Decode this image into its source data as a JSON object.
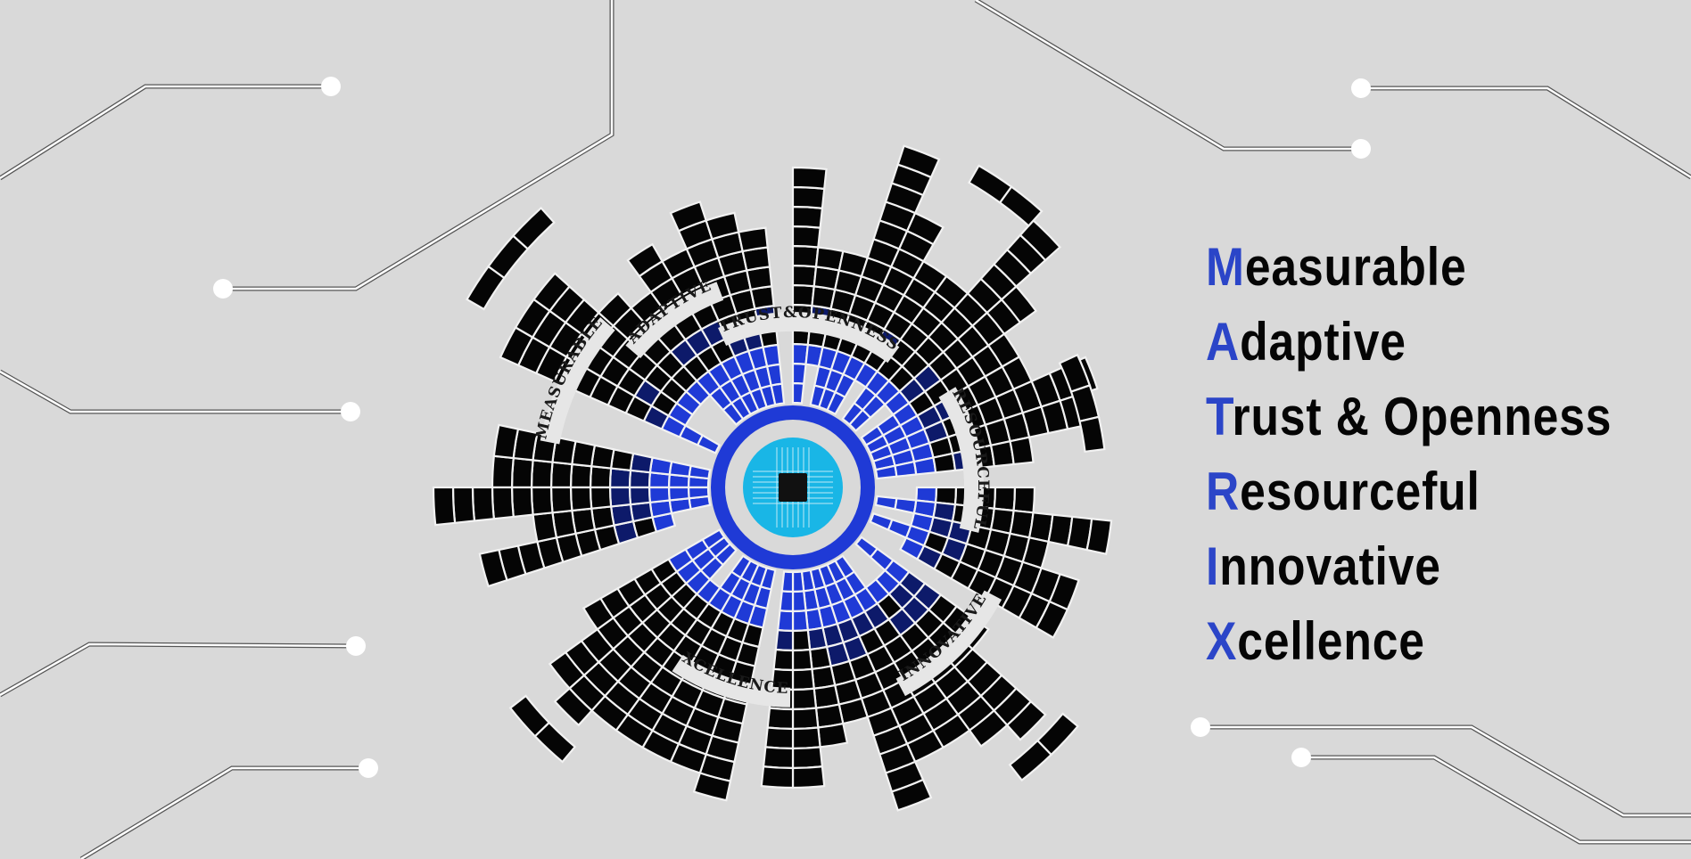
{
  "acronym": "MATRIX",
  "colors": {
    "background": "#d9d9d9",
    "accent": "#2b45c8",
    "text": "#050505",
    "center": "#19b6e6",
    "cells": "#050505",
    "cell_blue": "#1f3ad6"
  },
  "list": [
    {
      "first": "M",
      "rest": "easurable"
    },
    {
      "first": "A",
      "rest": "daptive"
    },
    {
      "first": "T",
      "rest": "rust & Openness"
    },
    {
      "first": "R",
      "rest": "esourceful"
    },
    {
      "first": "I",
      "rest": "nnovative"
    },
    {
      "first": "X",
      "rest": "cellence"
    }
  ],
  "wheel": {
    "labels": [
      "MEASURABLE",
      "ADAPTIVE",
      "TRUST&OPENNESS",
      "RESOURCEFUL",
      "INNOVATIVE",
      "XCELLENCE"
    ],
    "center_icon": "microchip-icon"
  }
}
